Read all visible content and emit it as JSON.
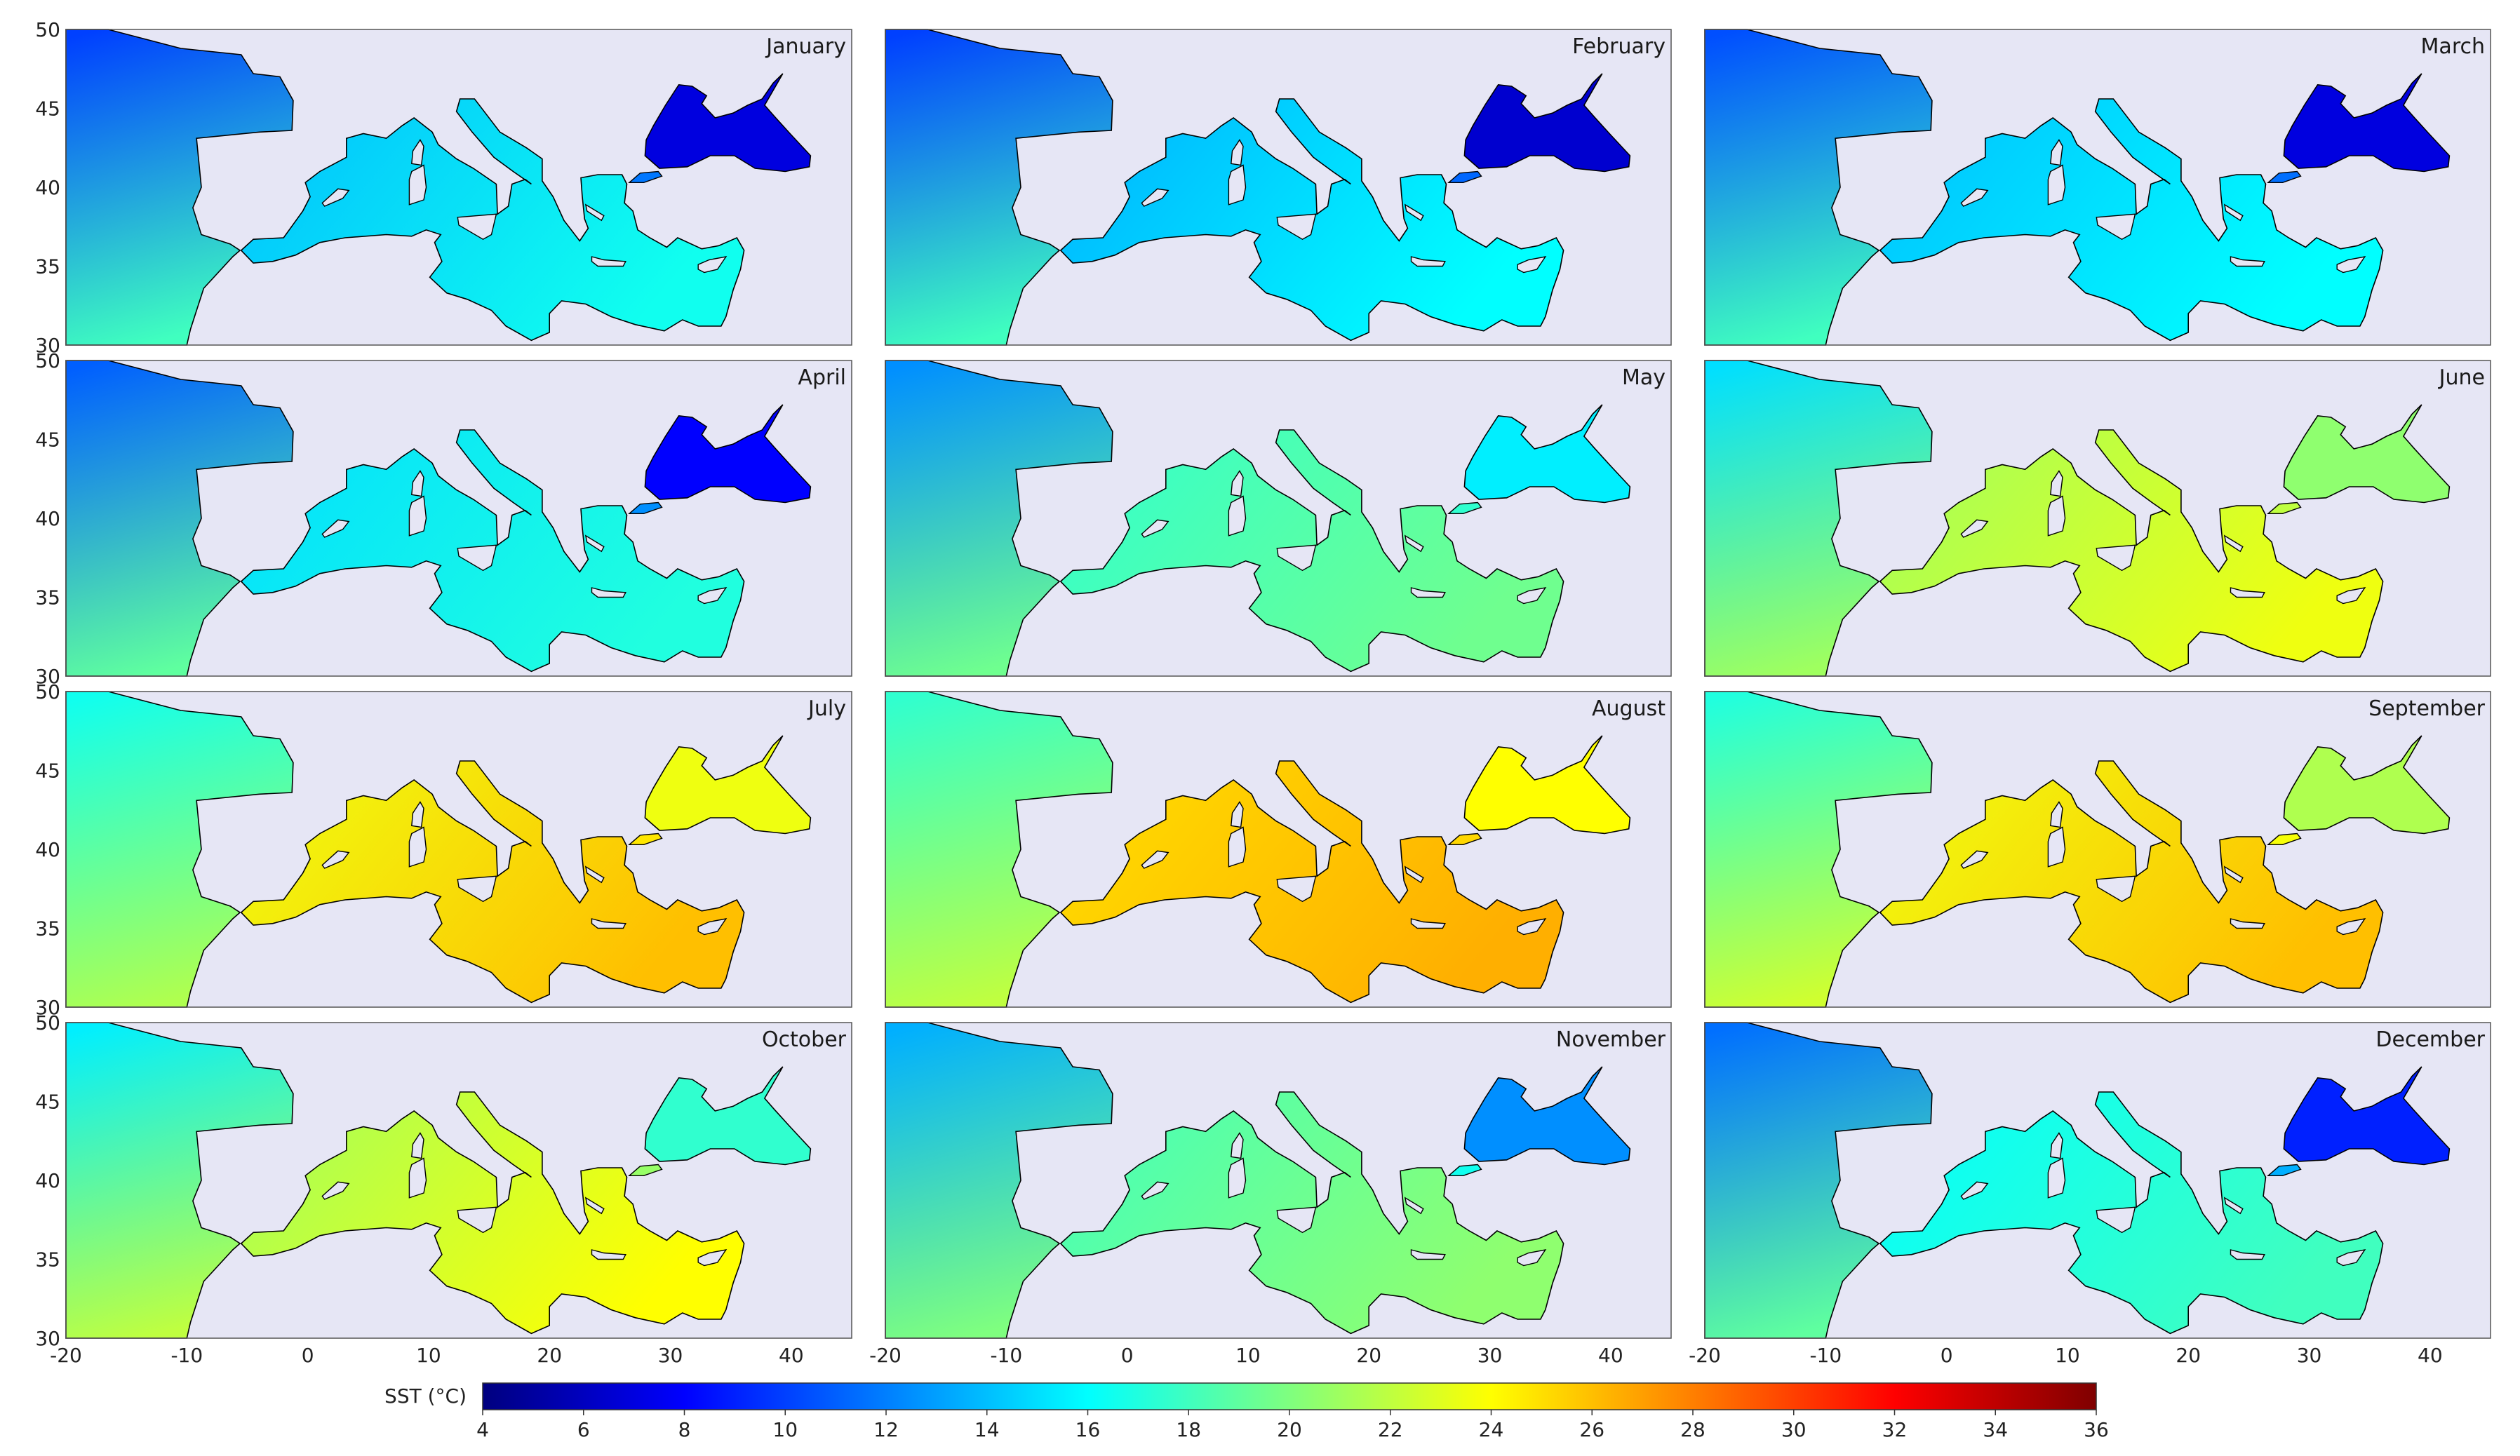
{
  "figure": {
    "colorbar": {
      "title": "SST (°C)",
      "min": 4,
      "max": 36,
      "ticks": [
        4,
        6,
        8,
        10,
        12,
        14,
        16,
        18,
        20,
        22,
        24,
        26,
        28,
        30,
        32,
        34,
        36
      ],
      "colormap": "jet",
      "colors": [
        "#00007f",
        "#0000ff",
        "#007fff",
        "#00ffff",
        "#7fff7f",
        "#ffff00",
        "#ff7f00",
        "#ff0000",
        "#7f0000"
      ]
    },
    "axes": {
      "lon_ticks": [
        -20,
        -10,
        0,
        10,
        20,
        30,
        40
      ],
      "lat_ticks": [
        30,
        35,
        40,
        45,
        50
      ],
      "lon_range": [
        -20,
        45
      ],
      "lat_range": [
        30,
        50
      ]
    },
    "colors": {
      "land": "#e6e6f5",
      "coastline": "#000000"
    },
    "panels": [
      {
        "month": "January",
        "sst": {
          "atlantic_n": 10,
          "atlantic_s": 18,
          "med_w": 14,
          "med_e": 16.5,
          "black_sea": 7
        }
      },
      {
        "month": "February",
        "sst": {
          "atlantic_n": 10,
          "atlantic_s": 18,
          "med_w": 13.5,
          "med_e": 16,
          "black_sea": 6.5
        }
      },
      {
        "month": "March",
        "sst": {
          "atlantic_n": 10.5,
          "atlantic_s": 18,
          "med_w": 14,
          "med_e": 16,
          "black_sea": 7
        }
      },
      {
        "month": "April",
        "sst": {
          "atlantic_n": 11,
          "atlantic_s": 19,
          "med_w": 15,
          "med_e": 17,
          "black_sea": 8
        }
      },
      {
        "month": "May",
        "sst": {
          "atlantic_n": 12.5,
          "atlantic_s": 19.5,
          "med_w": 17.5,
          "med_e": 19.5,
          "black_sea": 15.5
        }
      },
      {
        "month": "June",
        "sst": {
          "atlantic_n": 15,
          "atlantic_s": 21,
          "med_w": 21,
          "med_e": 23.5,
          "black_sea": 20.5
        }
      },
      {
        "month": "July",
        "sst": {
          "atlantic_n": 16.5,
          "atlantic_s": 21.5,
          "med_w": 23.5,
          "med_e": 26,
          "black_sea": 23.5
        }
      },
      {
        "month": "August",
        "sst": {
          "atlantic_n": 17.5,
          "atlantic_s": 22,
          "med_w": 25,
          "med_e": 26.5,
          "black_sea": 24
        }
      },
      {
        "month": "September",
        "sst": {
          "atlantic_n": 17,
          "atlantic_s": 22.5,
          "med_w": 23.5,
          "med_e": 26,
          "black_sea": 21.5
        }
      },
      {
        "month": "October",
        "sst": {
          "atlantic_n": 15.5,
          "atlantic_s": 22,
          "med_w": 21,
          "med_e": 24,
          "black_sea": 17.5
        }
      },
      {
        "month": "November",
        "sst": {
          "atlantic_n": 13.5,
          "atlantic_s": 20,
          "med_w": 18,
          "med_e": 20.5,
          "black_sea": 12.5
        }
      },
      {
        "month": "December",
        "sst": {
          "atlantic_n": 11.5,
          "atlantic_s": 19,
          "med_w": 16,
          "med_e": 18,
          "black_sea": 9
        }
      }
    ]
  }
}
